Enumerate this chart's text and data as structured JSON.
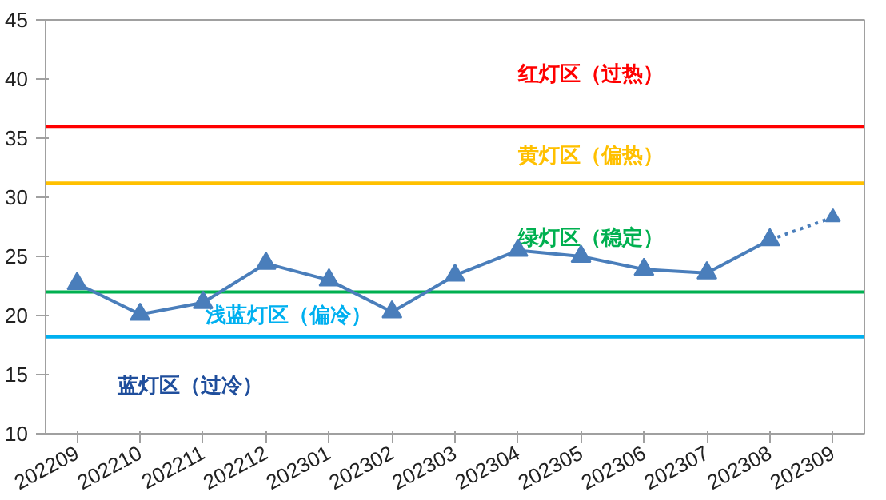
{
  "chart_data": {
    "type": "line",
    "categories": [
      "202209",
      "202210",
      "202211",
      "202212",
      "202301",
      "202302",
      "202303",
      "202304",
      "202305",
      "202306",
      "202307",
      "202308",
      "202309"
    ],
    "series": [
      {
        "color": "#4a7ebb",
        "values": [
          22.7,
          20.1,
          21.1,
          24.4,
          23.0,
          20.3,
          23.4,
          25.5,
          25.0,
          23.9,
          23.6,
          26.4,
          null
        ],
        "line_style": "solid"
      },
      {
        "color": "#4a7ebb",
        "values": [
          null,
          null,
          null,
          null,
          null,
          null,
          null,
          null,
          null,
          null,
          null,
          26.4,
          28.3
        ],
        "line_style": "dotted"
      }
    ],
    "marker": "triangle",
    "ylim": [
      10,
      45
    ],
    "yticks": [
      10,
      15,
      20,
      25,
      30,
      35,
      40,
      45
    ],
    "grid": false,
    "ref_lines": [
      {
        "axis": "y",
        "value": 36,
        "color": "#ff0000"
      },
      {
        "axis": "y",
        "value": 31.2,
        "color": "#ffc000"
      },
      {
        "axis": "y",
        "value": 22,
        "color": "#00b050"
      },
      {
        "axis": "y",
        "value": 18.2,
        "color": "#00b0f0"
      }
    ],
    "annotations": [
      "红灯区（过热）",
      "黄灯区（偏热）",
      "绿灯区（稳定）",
      "浅蓝灯区（偏冷）",
      "蓝灯区（过冷）"
    ]
  }
}
